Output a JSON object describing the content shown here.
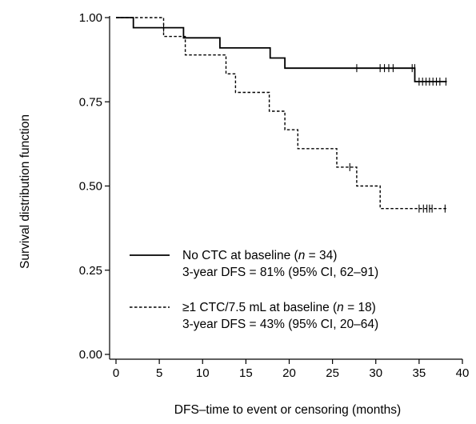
{
  "chart_data": {
    "type": "line",
    "step": true,
    "xlabel": "DFS–time to event or censoring (months)",
    "ylabel": "Survival distribution function",
    "xlim": [
      0,
      40
    ],
    "ylim": [
      0,
      1
    ],
    "x_ticks": [
      0,
      5,
      10,
      15,
      20,
      25,
      30,
      35,
      40
    ],
    "y_ticks": [
      0,
      0.25,
      0.5,
      0.75,
      1
    ],
    "y_tick_labels": [
      "0.00",
      "0.25",
      "0.50",
      "0.75",
      "1.00"
    ],
    "grid": false,
    "legend_position": "lower-center",
    "series": [
      {
        "name": "No CTC at baseline (n = 34)",
        "summary": "3-year DFS = 81% (95% CI, 62–91)",
        "line_style": "solid",
        "color": "#000000",
        "steps": [
          [
            0,
            1.0
          ],
          [
            2,
            0.97
          ],
          [
            7.8,
            0.94
          ],
          [
            12,
            0.91
          ],
          [
            17.8,
            0.88
          ],
          [
            19.5,
            0.85
          ],
          [
            34.5,
            0.81
          ],
          [
            38.2,
            0.81
          ]
        ],
        "censored": [
          [
            5.5,
            0.97
          ],
          [
            27.8,
            0.85
          ],
          [
            30.5,
            0.85
          ],
          [
            31,
            0.85
          ],
          [
            31.5,
            0.85
          ],
          [
            32,
            0.85
          ],
          [
            34.2,
            0.85
          ],
          [
            34.5,
            0.85
          ],
          [
            35,
            0.81
          ],
          [
            35.4,
            0.81
          ],
          [
            35.8,
            0.81
          ],
          [
            36.2,
            0.81
          ],
          [
            36.6,
            0.81
          ],
          [
            37,
            0.81
          ],
          [
            37.4,
            0.81
          ],
          [
            38.1,
            0.81
          ]
        ]
      },
      {
        "name": "≥1 CTC/7.5 mL at baseline (n = 18)",
        "summary": "3-year DFS = 43% (95% CI, 20–64)",
        "line_style": "dashed",
        "color": "#000000",
        "steps": [
          [
            0,
            1.0
          ],
          [
            5.5,
            0.944
          ],
          [
            8,
            0.889
          ],
          [
            12.7,
            0.833
          ],
          [
            13.8,
            0.778
          ],
          [
            17.7,
            0.722
          ],
          [
            19.5,
            0.667
          ],
          [
            21,
            0.611
          ],
          [
            25.5,
            0.556
          ],
          [
            27.8,
            0.5
          ],
          [
            30.5,
            0.433
          ],
          [
            38.2,
            0.433
          ]
        ],
        "censored": [
          [
            27,
            0.556
          ],
          [
            35,
            0.433
          ],
          [
            35.5,
            0.433
          ],
          [
            35.9,
            0.433
          ],
          [
            36.2,
            0.433
          ],
          [
            36.5,
            0.433
          ],
          [
            38,
            0.433
          ]
        ]
      }
    ]
  }
}
